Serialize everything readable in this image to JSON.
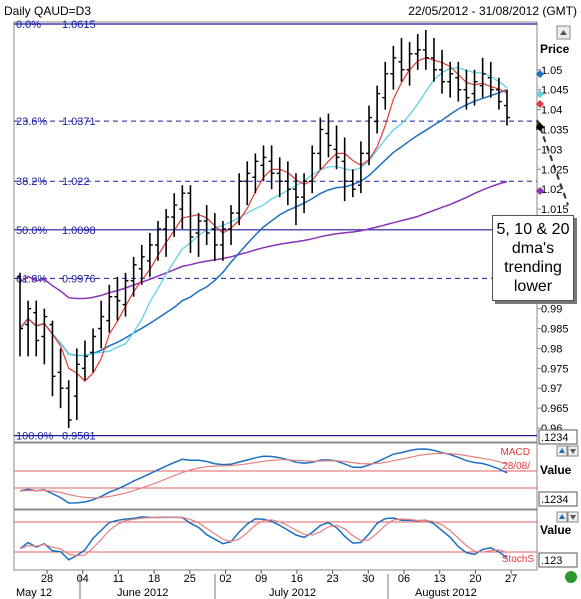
{
  "header": {
    "title": "Daily QAUD=D3",
    "date_range": "22/05/2012 - 31/08/2012 (GMT)"
  },
  "price_axis": {
    "label": "Price",
    "ticks": [
      "1.05",
      "1.045",
      "1.04",
      "1.035",
      "1.03",
      "1.025",
      "1.02",
      "1.015",
      "1.01",
      "1.005",
      "1",
      "0.995",
      "0.99",
      "0.985",
      "0.98",
      "0.975",
      "0.97",
      "0.965",
      "0.96"
    ],
    "last_value": ".1234"
  },
  "macd_panel": {
    "label": "MACD",
    "date_label": "28/08/",
    "value_label": "Value",
    "last_value": ".1234"
  },
  "stoch_panel": {
    "label": "StochS",
    "value_label": "Value",
    "last_value": ".123"
  },
  "x_axis": {
    "days": [
      "28",
      "04",
      "11",
      "18",
      "25",
      "02",
      "09",
      "16",
      "23",
      "30",
      "06",
      "13",
      "20",
      "27"
    ],
    "months": [
      "May 12",
      "June 2012",
      "July 2012",
      "August 2012"
    ]
  },
  "callout": {
    "text": "5, 10 & 20\ndma's\ntrending\nlower"
  },
  "colors": {
    "candles": "#000000",
    "dma5": "#e23a3a",
    "dma10": "#5fd0e8",
    "dma20": "#1c6fc2",
    "long_ma": "#8a32b8",
    "fib": "#1a1aa0",
    "hband": "#e06060"
  },
  "chart_data": {
    "type": "ohlc",
    "title": "Daily QAUD=D3",
    "ylim": [
      0.957,
      1.062
    ],
    "fib_levels": [
      {
        "label": "0.0%",
        "value": 1.0615
      },
      {
        "label": "23.6%",
        "value": 1.0371
      },
      {
        "label": "38.2%",
        "value": 1.022
      },
      {
        "label": "50.0%",
        "value": 1.0098
      },
      {
        "label": "61.8%",
        "value": 0.9976
      },
      {
        "label": "100.0%",
        "value": 0.9581
      }
    ],
    "ohlc": [
      [
        0.998,
        0.999,
        0.978,
        0.985
      ],
      [
        0.986,
        0.992,
        0.978,
        0.99
      ],
      [
        0.989,
        0.992,
        0.978,
        0.982
      ],
      [
        0.983,
        0.99,
        0.976,
        0.988
      ],
      [
        0.986,
        0.987,
        0.968,
        0.973
      ],
      [
        0.974,
        0.98,
        0.965,
        0.97
      ],
      [
        0.97,
        0.972,
        0.96,
        0.962
      ],
      [
        0.968,
        0.98,
        0.962,
        0.976
      ],
      [
        0.975,
        0.982,
        0.972,
        0.978
      ],
      [
        0.979,
        0.985,
        0.974,
        0.983
      ],
      [
        0.985,
        0.992,
        0.98,
        0.988
      ],
      [
        0.987,
        0.996,
        0.984,
        0.993
      ],
      [
        0.993,
        0.998,
        0.987,
        0.992
      ],
      [
        0.991,
        0.999,
        0.988,
        0.997
      ],
      [
        0.997,
        1.003,
        0.993,
        1.001
      ],
      [
        1.0,
        1.006,
        0.996,
        1.003
      ],
      [
        1.002,
        1.009,
        0.998,
        1.006
      ],
      [
        1.006,
        1.012,
        1.002,
        1.01
      ],
      [
        1.01,
        1.015,
        1.003,
        1.013
      ],
      [
        1.013,
        1.019,
        1.008,
        1.016
      ],
      [
        1.015,
        1.021,
        1.01,
        1.019
      ],
      [
        1.019,
        1.021,
        1.004,
        1.008
      ],
      [
        1.009,
        1.014,
        1.003,
        1.012
      ],
      [
        1.012,
        1.016,
        1.006,
        1.009
      ],
      [
        1.01,
        1.014,
        1.002,
        1.006
      ],
      [
        1.006,
        1.012,
        1.002,
        1.01
      ],
      [
        1.01,
        1.016,
        1.006,
        1.014
      ],
      [
        1.014,
        1.024,
        1.011,
        1.022
      ],
      [
        1.022,
        1.027,
        1.016,
        1.024
      ],
      [
        1.023,
        1.029,
        1.019,
        1.027
      ],
      [
        1.026,
        1.031,
        1.022,
        1.028
      ],
      [
        1.027,
        1.031,
        1.02,
        1.024
      ],
      [
        1.024,
        1.028,
        1.018,
        1.022
      ],
      [
        1.022,
        1.027,
        1.016,
        1.02
      ],
      [
        1.02,
        1.024,
        1.011,
        1.018
      ],
      [
        1.018,
        1.024,
        1.014,
        1.022
      ],
      [
        1.022,
        1.031,
        1.019,
        1.029
      ],
      [
        1.029,
        1.038,
        1.025,
        1.035
      ],
      [
        1.034,
        1.039,
        1.028,
        1.031
      ],
      [
        1.03,
        1.036,
        1.025,
        1.028
      ],
      [
        1.027,
        1.033,
        1.017,
        1.022
      ],
      [
        1.022,
        1.025,
        1.018,
        1.02
      ],
      [
        1.021,
        1.032,
        1.019,
        1.029
      ],
      [
        1.029,
        1.041,
        1.026,
        1.038
      ],
      [
        1.037,
        1.046,
        1.034,
        1.044
      ],
      [
        1.043,
        1.052,
        1.04,
        1.049
      ],
      [
        1.049,
        1.056,
        1.045,
        1.053
      ],
      [
        1.052,
        1.058,
        1.047,
        1.05
      ],
      [
        1.05,
        1.057,
        1.046,
        1.054
      ],
      [
        1.054,
        1.059,
        1.05,
        1.055
      ],
      [
        1.055,
        1.06,
        1.05,
        1.053
      ],
      [
        1.053,
        1.058,
        1.047,
        1.05
      ],
      [
        1.05,
        1.055,
        1.044,
        1.047
      ],
      [
        1.047,
        1.052,
        1.043,
        1.049
      ],
      [
        1.048,
        1.052,
        1.042,
        1.045
      ],
      [
        1.045,
        1.05,
        1.04,
        1.043
      ],
      [
        1.044,
        1.05,
        1.041,
        1.047
      ],
      [
        1.046,
        1.053,
        1.043,
        1.049
      ],
      [
        1.048,
        1.052,
        1.043,
        1.045
      ],
      [
        1.045,
        1.048,
        1.04,
        1.042
      ],
      [
        1.041,
        1.045,
        1.036,
        1.038
      ]
    ]
  }
}
